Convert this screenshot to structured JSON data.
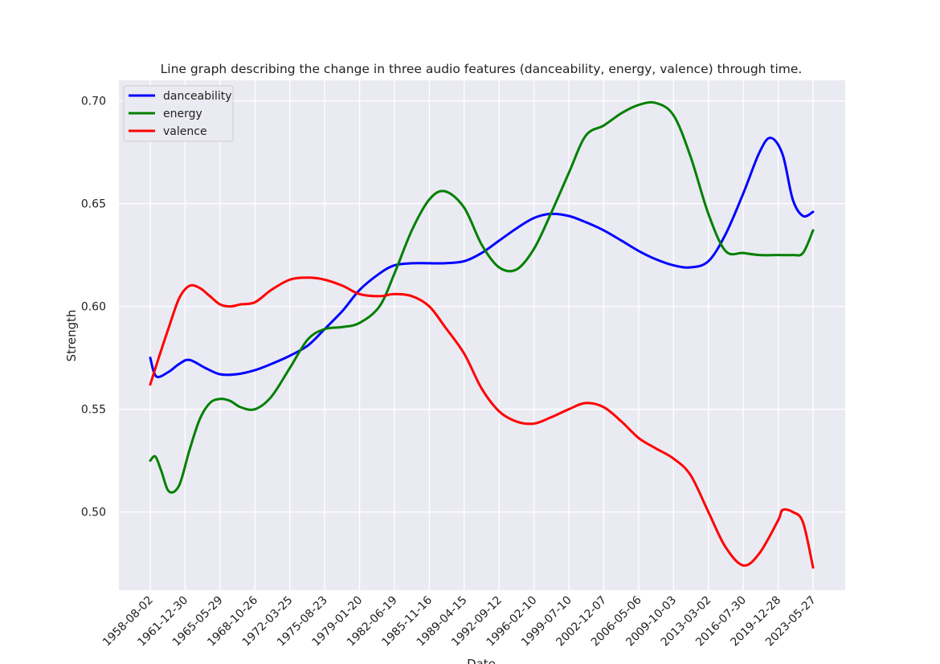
{
  "chart_data": {
    "type": "line",
    "title": "Line graph describing the change in three audio features (danceability, energy, valence) through time.",
    "xlabel": "Date",
    "ylabel": "Strength",
    "ylim": [
      0.462,
      0.71
    ],
    "yticks": [
      0.5,
      0.55,
      0.6,
      0.65,
      0.7
    ],
    "ytick_labels": [
      "0.50",
      "0.55",
      "0.60",
      "0.65",
      "0.70"
    ],
    "xticks": [
      "1958-08-02",
      "1961-12-30",
      "1965-05-29",
      "1968-10-26",
      "1972-03-25",
      "1975-08-23",
      "1979-01-20",
      "1982-06-19",
      "1985-11-16",
      "1989-04-15",
      "1992-09-12",
      "1996-02-10",
      "1999-07-10",
      "2002-12-07",
      "2006-05-06",
      "2009-10-03",
      "2013-03-02",
      "2016-07-30",
      "2019-12-28",
      "2023-05-27"
    ],
    "grid": true,
    "legend": "top-left",
    "series": [
      {
        "name": "danceability",
        "color": "#0000ff",
        "x": [
          "1958-08-02",
          "1959-03-01",
          "1960-05-01",
          "1961-06-01",
          "1962-06-01",
          "1964-01-01",
          "1965-06-01",
          "1967-01-01",
          "1968-10-26",
          "1970-06-01",
          "1972-03-25",
          "1974-01-01",
          "1975-08-23",
          "1977-06-01",
          "1979-01-20",
          "1981-01-01",
          "1982-06-19",
          "1984-03-01",
          "1985-11-16",
          "1987-06-01",
          "1989-04-15",
          "1991-01-01",
          "1992-09-12",
          "1994-06-01",
          "1996-02-10",
          "1997-10-01",
          "1999-07-10",
          "2001-03-01",
          "2002-12-07",
          "2004-09-01",
          "2006-05-06",
          "2008-01-01",
          "2009-10-03",
          "2011-06-01",
          "2013-03-02",
          "2014-11-01",
          "2016-07-30",
          "2018-03-01",
          "2019-04-01",
          "2020-06-01",
          "2021-06-01",
          "2022-06-01",
          "2023-05-27"
        ],
        "values": [
          0.575,
          0.566,
          0.568,
          0.572,
          0.574,
          0.57,
          0.567,
          0.567,
          0.569,
          0.572,
          0.576,
          0.581,
          0.589,
          0.598,
          0.608,
          0.616,
          0.62,
          0.621,
          0.621,
          0.621,
          0.622,
          0.626,
          0.632,
          0.638,
          0.643,
          0.645,
          0.644,
          0.641,
          0.637,
          0.632,
          0.627,
          0.623,
          0.62,
          0.619,
          0.622,
          0.635,
          0.655,
          0.675,
          0.682,
          0.674,
          0.652,
          0.644,
          0.646
        ]
      },
      {
        "name": "energy",
        "color": "#008000",
        "x": [
          "1958-08-02",
          "1959-02-01",
          "1959-09-01",
          "1960-06-01",
          "1961-06-01",
          "1962-06-01",
          "1963-06-01",
          "1964-06-01",
          "1965-05-29",
          "1966-06-01",
          "1967-06-01",
          "1968-10-26",
          "1970-06-01",
          "1972-03-25",
          "1974-01-01",
          "1975-08-23",
          "1977-06-01",
          "1979-01-20",
          "1981-01-01",
          "1982-06-19",
          "1984-03-01",
          "1985-11-16",
          "1987-06-01",
          "1989-04-15",
          "1991-01-01",
          "1992-09-12",
          "1994-06-01",
          "1996-02-10",
          "1997-10-01",
          "1999-07-10",
          "2001-03-01",
          "2002-12-07",
          "2004-09-01",
          "2006-05-06",
          "2008-01-01",
          "2009-10-03",
          "2011-06-01",
          "2013-03-02",
          "2014-11-01",
          "2016-07-30",
          "2018-03-01",
          "2019-12-28",
          "2021-06-01",
          "2022-06-01",
          "2023-05-27"
        ],
        "values": [
          0.525,
          0.527,
          0.52,
          0.51,
          0.513,
          0.53,
          0.545,
          0.553,
          0.555,
          0.554,
          0.551,
          0.55,
          0.556,
          0.57,
          0.584,
          0.589,
          0.59,
          0.592,
          0.6,
          0.616,
          0.637,
          0.652,
          0.656,
          0.648,
          0.63,
          0.619,
          0.618,
          0.628,
          0.645,
          0.665,
          0.683,
          0.688,
          0.694,
          0.698,
          0.699,
          0.693,
          0.673,
          0.645,
          0.627,
          0.626,
          0.625,
          0.625,
          0.625,
          0.626,
          0.637
        ]
      },
      {
        "name": "valence",
        "color": "#ff0000",
        "x": [
          "1958-08-02",
          "1959-06-01",
          "1960-06-01",
          "1961-06-01",
          "1962-06-01",
          "1963-06-01",
          "1964-06-01",
          "1965-05-29",
          "1966-06-01",
          "1967-06-01",
          "1968-10-26",
          "1970-06-01",
          "1972-03-25",
          "1974-01-01",
          "1975-08-23",
          "1977-06-01",
          "1979-01-20",
          "1981-01-01",
          "1982-06-19",
          "1984-03-01",
          "1985-11-16",
          "1987-06-01",
          "1989-04-15",
          "1991-01-01",
          "1992-09-12",
          "1994-06-01",
          "1996-02-10",
          "1997-10-01",
          "1999-07-10",
          "2001-03-01",
          "2002-12-07",
          "2004-09-01",
          "2006-05-06",
          "2008-01-01",
          "2009-10-03",
          "2011-06-01",
          "2013-03-02",
          "2014-11-01",
          "2016-07-30",
          "2018-03-01",
          "2019-12-28",
          "2020-06-01",
          "2021-06-01",
          "2022-06-01",
          "2023-05-27"
        ],
        "values": [
          0.562,
          0.575,
          0.59,
          0.604,
          0.61,
          0.609,
          0.605,
          0.601,
          0.6,
          0.601,
          0.602,
          0.608,
          0.613,
          0.614,
          0.613,
          0.61,
          0.606,
          0.605,
          0.606,
          0.605,
          0.6,
          0.59,
          0.577,
          0.56,
          0.549,
          0.544,
          0.543,
          0.546,
          0.55,
          0.553,
          0.551,
          0.544,
          0.536,
          0.531,
          0.526,
          0.518,
          0.5,
          0.483,
          0.474,
          0.48,
          0.496,
          0.501,
          0.5,
          0.495,
          0.473
        ]
      }
    ]
  }
}
